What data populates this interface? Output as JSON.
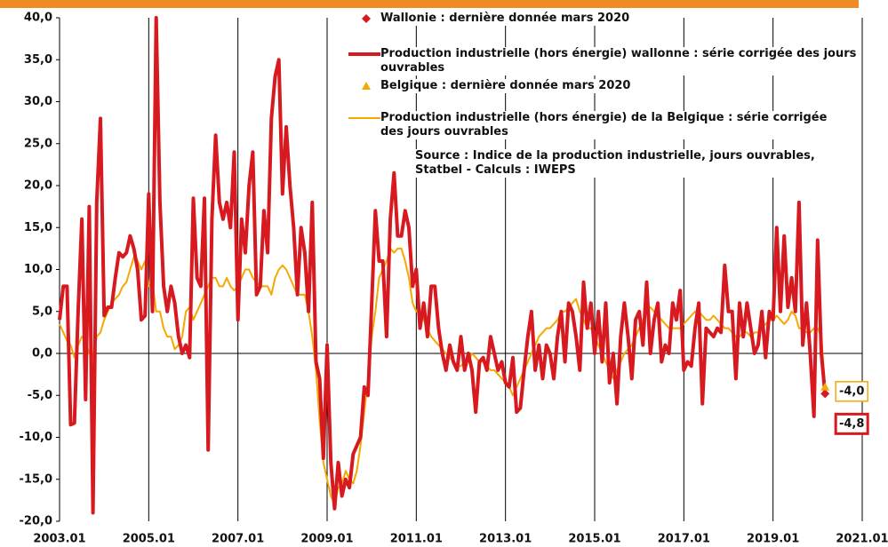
{
  "chart_data": {
    "type": "line",
    "categories": [
      "2003.01",
      null,
      null,
      null,
      null,
      null,
      null,
      null,
      null,
      null,
      null,
      null,
      null,
      null,
      null,
      null,
      null,
      null,
      null,
      null,
      null,
      null,
      null,
      null,
      "2005.01",
      null,
      null,
      null,
      null,
      null,
      null,
      null,
      null,
      null,
      null,
      null,
      null,
      null,
      null,
      null,
      null,
      null,
      null,
      null,
      null,
      null,
      null,
      null,
      "2007.01",
      null,
      null,
      null,
      null,
      null,
      null,
      null,
      null,
      null,
      null,
      null,
      null,
      null,
      null,
      null,
      null,
      null,
      null,
      null,
      null,
      null,
      null,
      null,
      "2009.01",
      null,
      null,
      null,
      null,
      null,
      null,
      null,
      null,
      null,
      null,
      null,
      null,
      null,
      null,
      null,
      null,
      null,
      null,
      null,
      null,
      null,
      null,
      null,
      "2011.01",
      null,
      null,
      null,
      null,
      null,
      null,
      null,
      null,
      null,
      null,
      null,
      null,
      null,
      null,
      null,
      null,
      null,
      null,
      null,
      null,
      null,
      null,
      null,
      "2013.01",
      null,
      null,
      null,
      null,
      null,
      null,
      null,
      null,
      null,
      null,
      null,
      null,
      null,
      null,
      null,
      null,
      null,
      null,
      null,
      null,
      null,
      null,
      null,
      "2015.01",
      null,
      null,
      null,
      null,
      null,
      null,
      null,
      null,
      null,
      null,
      null,
      null,
      null,
      null,
      null,
      null,
      null,
      null,
      null,
      null,
      null,
      null,
      null,
      "2017.01",
      null,
      null,
      null,
      null,
      null,
      null,
      null,
      null,
      null,
      null,
      null,
      null,
      null,
      null,
      null,
      null,
      null,
      null,
      null,
      null,
      null,
      null,
      null,
      "2019.01",
      null,
      null,
      null,
      null,
      null,
      null,
      null,
      null,
      null,
      null,
      null,
      null,
      null,
      null,
      null,
      null,
      null,
      null,
      null,
      null,
      null,
      null,
      null,
      "2021.01"
    ],
    "series": [
      {
        "name": "Production  industrielle (hors énergie) wallonne : série corrigée des jours ouvrables",
        "color": "#d71920",
        "width": 4,
        "values": [
          4,
          8,
          8,
          -8.5,
          -8.3,
          5,
          16,
          -5.5,
          17.5,
          -19,
          18,
          28,
          4.5,
          5.5,
          5.5,
          9,
          12,
          11.5,
          12,
          14,
          12.5,
          10,
          4,
          4.5,
          19,
          5,
          40,
          18,
          8,
          5,
          8,
          6,
          2,
          0,
          1,
          -0.5,
          18.5,
          9,
          8,
          18.5,
          -11.5,
          16,
          26,
          18,
          16,
          18,
          15,
          24,
          4,
          16,
          12,
          20,
          24,
          7,
          8,
          17,
          12,
          28,
          33,
          35,
          19,
          27,
          20,
          15,
          7,
          15,
          12,
          5,
          18,
          -1,
          -3,
          -12.5,
          1,
          -13,
          -18.5,
          -13,
          -17,
          -15,
          -16,
          -12,
          -11,
          -10,
          -4,
          -5,
          6,
          17,
          11,
          11,
          2,
          16,
          21.5,
          14,
          14,
          17,
          15,
          8,
          10,
          3,
          6,
          2,
          8,
          8,
          3,
          0,
          -2,
          1,
          -1,
          -2,
          2,
          -2,
          0,
          -2,
          -7,
          -1,
          -0.5,
          -2,
          2,
          0,
          -2,
          -1,
          -3.5,
          -4,
          -0.5,
          -7,
          -6.5,
          -2,
          2,
          5,
          -2,
          1,
          -3,
          1,
          0,
          -3,
          2,
          5,
          -1,
          6,
          5,
          2,
          -2,
          8.5,
          3,
          6,
          0,
          5,
          -1,
          6,
          -3.5,
          0,
          -6,
          2,
          6,
          2,
          -3,
          4,
          5,
          1,
          8.5,
          0,
          4,
          6,
          -1,
          1,
          0,
          6,
          4,
          7.5,
          -2,
          -1,
          -1.5,
          3,
          6,
          -6,
          3,
          2.5,
          2,
          3,
          2.5,
          10.5,
          5,
          5,
          -3,
          6,
          2,
          6,
          3,
          0,
          1,
          5,
          -0.5,
          5,
          4,
          15,
          5,
          14,
          5.5,
          9,
          5,
          18,
          1,
          6,
          0,
          -7.5,
          13.5,
          0,
          -4.8,
          null,
          null,
          null,
          null,
          null,
          null,
          null,
          null,
          null,
          null
        ]
      },
      {
        "name": "Production industrielle (hors énergie) de la Belgique : série corrigée des jours ouvrables",
        "color": "#f5a800",
        "width": 2,
        "values": [
          3.5,
          2.5,
          1.5,
          1,
          -0.5,
          1,
          2,
          1.5,
          0,
          -0.5,
          2,
          2.5,
          4,
          5,
          6,
          6.5,
          7,
          8,
          8.5,
          10,
          11.5,
          11,
          10,
          11,
          8,
          8.5,
          5,
          5,
          3,
          2,
          2,
          0.5,
          1,
          2,
          5,
          5.5,
          4,
          5,
          6,
          7,
          8,
          9,
          9,
          8,
          8,
          9,
          8,
          7.5,
          8,
          9,
          10,
          10,
          9,
          8.5,
          8,
          8,
          8,
          7,
          9,
          10,
          10.5,
          10,
          9,
          8,
          7,
          7,
          7,
          5,
          2,
          -2,
          -8,
          -13,
          -15,
          -17,
          -18,
          -16,
          -15.5,
          -14,
          -15,
          -15.5,
          -14,
          -11,
          -7,
          -3,
          2,
          5,
          9,
          10,
          11,
          12.5,
          12,
          12.5,
          12.5,
          11,
          9,
          6,
          5,
          5,
          4,
          3,
          2,
          1.5,
          1,
          0.5,
          0,
          -0.5,
          -1,
          -1.5,
          -1.5,
          -1,
          -1,
          0,
          -0.5,
          -1,
          -1,
          -1.5,
          -2,
          -2,
          -2.5,
          -3,
          -3.5,
          -4,
          -5,
          -4,
          -3,
          -2,
          -1,
          0,
          1,
          2,
          2.5,
          3,
          3,
          3.5,
          4,
          5,
          5,
          5.5,
          6,
          6.5,
          5,
          4,
          3,
          3,
          2,
          1,
          0,
          -1,
          -2,
          -3,
          -2,
          -1,
          0,
          0.5,
          1,
          2,
          3,
          4,
          5,
          5.5,
          5,
          4.5,
          4,
          3.5,
          3,
          3,
          3,
          3,
          3.5,
          4,
          4.5,
          5,
          5,
          4.5,
          4,
          4,
          4.5,
          4,
          3.5,
          3,
          3,
          2.5,
          2,
          2,
          2.5,
          2.5,
          2,
          2.5,
          2.5,
          3,
          3.5,
          4,
          4,
          4.5,
          4,
          3.5,
          4,
          5,
          4.5,
          3,
          3,
          2.5,
          2.5,
          3,
          3,
          2,
          -4.0,
          null,
          null,
          null,
          null,
          null,
          null,
          null,
          null,
          null,
          null
        ]
      }
    ],
    "markers": [
      {
        "name": "Wallonie : dernière donnée mars 2020",
        "color": "#d71920",
        "shape": "diamond",
        "x": [
          "2020.03"
        ],
        "values": [
          -4.8
        ],
        "value_labels": [
          "-4,8"
        ]
      },
      {
        "name": "Belgique : dernière donnée mars 2020",
        "color": "#f5a800",
        "shape": "triangle",
        "x": [
          "2020.03"
        ],
        "values": [
          -4.0
        ],
        "value_labels": [
          "-4,0"
        ]
      }
    ],
    "annotation": "Source : Indice de la production industrielle, jours ouvrables, Statbel - Calculs : IWEPS",
    "ylim": [
      -20,
      40
    ],
    "yticks": [
      {
        "value": -20,
        "label": "-20,0"
      },
      {
        "value": -15,
        "label": "-15,0"
      },
      {
        "value": -10,
        "label": "-10,0"
      },
      {
        "value": -5,
        "label": "-5,0"
      },
      {
        "value": 0,
        "label": "0,0"
      },
      {
        "value": 5,
        "label": "5,0"
      },
      {
        "value": 10,
        "label": "10,0"
      },
      {
        "value": 15,
        "label": "15,0"
      },
      {
        "value": 20,
        "label": "20,0"
      },
      {
        "value": 25,
        "label": "25,0"
      },
      {
        "value": 30,
        "label": "30,0"
      },
      {
        "value": 35,
        "label": "35,0"
      },
      {
        "value": 40,
        "label": "40,0"
      }
    ],
    "xgrid": true
  }
}
